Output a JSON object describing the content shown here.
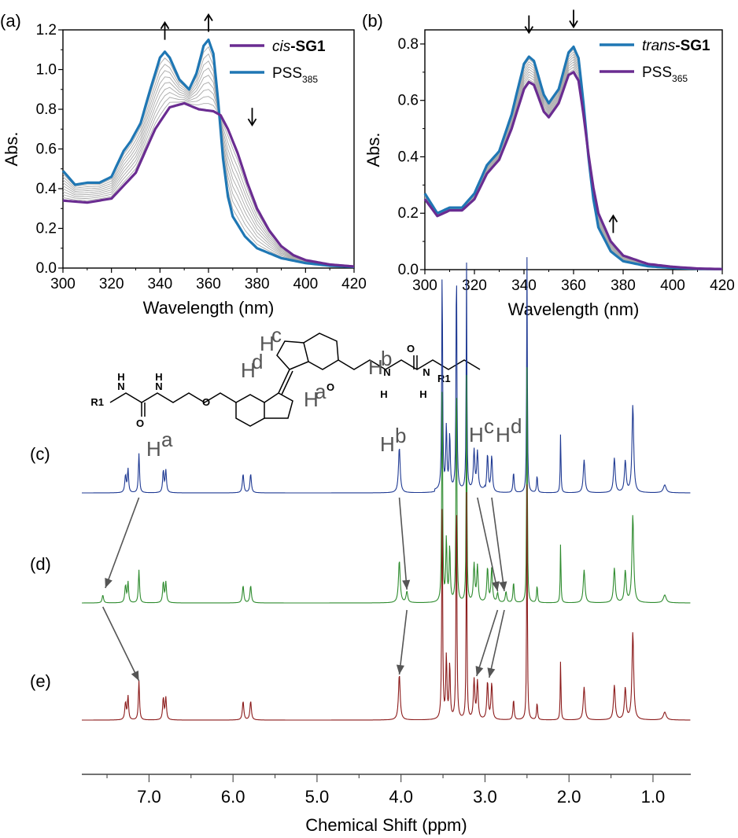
{
  "chart_data": [
    {
      "panel_label": "(a)",
      "type": "line",
      "xlabel": "Wavelength (nm)",
      "ylabel": "Abs.",
      "xlim": [
        300,
        420
      ],
      "ylim": [
        0,
        1.2
      ],
      "xticks": [
        "300",
        "320",
        "340",
        "360",
        "380",
        "400",
        "420"
      ],
      "yticks": [
        "0.0",
        "0.2",
        "0.4",
        "0.6",
        "0.8",
        "1.0",
        "1.2"
      ],
      "legend": {
        "position": "top-right",
        "entries": [
          {
            "italic": "cis",
            "bold": "-SG1",
            "color": "#6a2c91"
          },
          {
            "main": "PSS",
            "sub": "385",
            "color": "#1f77b4"
          }
        ]
      },
      "arrows": [
        {
          "x": 342,
          "y": 1.15,
          "dir": "up"
        },
        {
          "x": 360,
          "y": 1.19,
          "dir": "up"
        },
        {
          "x": 378,
          "y": 0.72,
          "dir": "down"
        }
      ],
      "series": [
        {
          "name": "PSS385",
          "color": "#1f77b4",
          "points": [
            [
              300,
              0.49
            ],
            [
              305,
              0.42
            ],
            [
              310,
              0.43
            ],
            [
              315,
              0.43
            ],
            [
              320,
              0.46
            ],
            [
              325,
              0.59
            ],
            [
              328,
              0.64
            ],
            [
              332,
              0.73
            ],
            [
              336,
              0.9
            ],
            [
              340,
              1.06
            ],
            [
              342,
              1.09
            ],
            [
              344,
              1.06
            ],
            [
              348,
              0.95
            ],
            [
              352,
              0.9
            ],
            [
              355,
              0.98
            ],
            [
              358,
              1.12
            ],
            [
              360,
              1.15
            ],
            [
              362,
              1.08
            ],
            [
              364,
              0.84
            ],
            [
              366,
              0.55
            ],
            [
              368,
              0.36
            ],
            [
              370,
              0.26
            ],
            [
              375,
              0.16
            ],
            [
              380,
              0.1
            ],
            [
              390,
              0.05
            ],
            [
              400,
              0.025
            ],
            [
              410,
              0.012
            ],
            [
              420,
              0.006
            ]
          ]
        },
        {
          "name": "cis-SG1",
          "color": "#6a2c91",
          "points": [
            [
              300,
              0.34
            ],
            [
              310,
              0.33
            ],
            [
              320,
              0.35
            ],
            [
              330,
              0.48
            ],
            [
              338,
              0.7
            ],
            [
              344,
              0.81
            ],
            [
              350,
              0.83
            ],
            [
              356,
              0.8
            ],
            [
              362,
              0.79
            ],
            [
              365,
              0.77
            ],
            [
              368,
              0.7
            ],
            [
              372,
              0.58
            ],
            [
              376,
              0.43
            ],
            [
              380,
              0.3
            ],
            [
              385,
              0.19
            ],
            [
              390,
              0.11
            ],
            [
              395,
              0.065
            ],
            [
              400,
              0.04
            ],
            [
              410,
              0.018
            ],
            [
              420,
              0.008
            ]
          ]
        }
      ]
    },
    {
      "panel_label": "(b)",
      "type": "line",
      "xlabel": "Wavelength (nm)",
      "ylabel": "Abs.",
      "xlim": [
        300,
        420
      ],
      "ylim": [
        0,
        0.85
      ],
      "xticks": [
        "300",
        "320",
        "340",
        "360",
        "380",
        "400",
        "420"
      ],
      "yticks": [
        "0.0",
        "0.2",
        "0.4",
        "0.6",
        "0.8"
      ],
      "legend": {
        "position": "top-right",
        "entries": [
          {
            "italic": "trans",
            "bold": "-SG1",
            "color": "#1f77b4"
          },
          {
            "main": "PSS",
            "sub": "365",
            "color": "#6a2c91"
          }
        ]
      },
      "arrows": [
        {
          "x": 342,
          "y": 0.84,
          "dir": "down"
        },
        {
          "x": 360,
          "y": 0.86,
          "dir": "down"
        },
        {
          "x": 376,
          "y": 0.13,
          "dir": "up"
        }
      ],
      "series": [
        {
          "name": "trans-SG1",
          "color": "#1f77b4",
          "points": [
            [
              300,
              0.27
            ],
            [
              305,
              0.2
            ],
            [
              310,
              0.22
            ],
            [
              315,
              0.22
            ],
            [
              320,
              0.27
            ],
            [
              325,
              0.37
            ],
            [
              330,
              0.42
            ],
            [
              335,
              0.55
            ],
            [
              340,
              0.73
            ],
            [
              342,
              0.755
            ],
            [
              344,
              0.74
            ],
            [
              348,
              0.62
            ],
            [
              350,
              0.59
            ],
            [
              354,
              0.64
            ],
            [
              358,
              0.77
            ],
            [
              360,
              0.79
            ],
            [
              362,
              0.75
            ],
            [
              364,
              0.59
            ],
            [
              366,
              0.4
            ],
            [
              368,
              0.25
            ],
            [
              370,
              0.15
            ],
            [
              375,
              0.065
            ],
            [
              380,
              0.03
            ],
            [
              390,
              0.012
            ],
            [
              400,
              0.006
            ],
            [
              410,
              0.003
            ],
            [
              420,
              0.002
            ]
          ]
        },
        {
          "name": "PSS365",
          "color": "#6a2c91",
          "points": [
            [
              300,
              0.25
            ],
            [
              305,
              0.19
            ],
            [
              310,
              0.21
            ],
            [
              315,
              0.21
            ],
            [
              320,
              0.25
            ],
            [
              325,
              0.34
            ],
            [
              330,
              0.39
            ],
            [
              335,
              0.5
            ],
            [
              340,
              0.64
            ],
            [
              342,
              0.665
            ],
            [
              344,
              0.655
            ],
            [
              348,
              0.56
            ],
            [
              350,
              0.54
            ],
            [
              354,
              0.59
            ],
            [
              358,
              0.69
            ],
            [
              360,
              0.7
            ],
            [
              362,
              0.67
            ],
            [
              364,
              0.55
            ],
            [
              366,
              0.41
            ],
            [
              368,
              0.29
            ],
            [
              370,
              0.2
            ],
            [
              375,
              0.1
            ],
            [
              380,
              0.05
            ],
            [
              390,
              0.02
            ],
            [
              400,
              0.01
            ],
            [
              410,
              0.004
            ],
            [
              420,
              0.002
            ]
          ]
        }
      ]
    },
    {
      "type": "line",
      "xlabel": "Chemical Shift (ppm)",
      "xlim": [
        7.8,
        0.55
      ],
      "xticks": [
        "7.0",
        "6.0",
        "5.0",
        "4.0",
        "3.0",
        "2.0",
        "1.0"
      ],
      "spectra": [
        {
          "label": "(c)",
          "color": "#1f3a93"
        },
        {
          "label": "(d)",
          "color": "#2e8b2e"
        },
        {
          "label": "(e)",
          "color": "#8b1a1a"
        }
      ],
      "annotations": [
        "H",
        "a",
        "H",
        "b",
        "H",
        "c",
        "H",
        "d"
      ]
    }
  ],
  "structure": {
    "labels": [
      "R1",
      "N",
      "H",
      "O",
      "N",
      "H",
      "O",
      "O",
      "N",
      "H",
      "O",
      "N",
      "H",
      "R1"
    ],
    "h_labels": [
      "H",
      "c",
      "H",
      "d",
      "H",
      "b",
      "H",
      "a"
    ]
  }
}
